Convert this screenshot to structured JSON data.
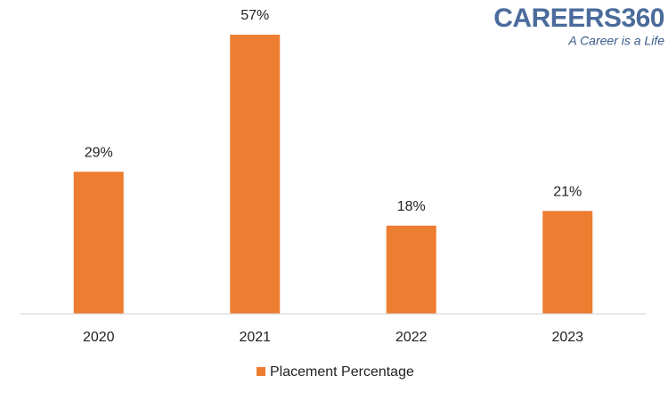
{
  "chart_data": {
    "type": "bar",
    "categories": [
      "2020",
      "2021",
      "2022",
      "2023"
    ],
    "series": [
      {
        "name": "Placement Percentage",
        "color": "#ed7d31",
        "values": [
          29,
          57,
          18,
          21
        ],
        "value_labels": [
          "29%",
          "57%",
          "18%",
          "21%"
        ]
      }
    ],
    "legend": "bottom"
  },
  "logo": {
    "text": "CAREERS360",
    "tagline": "A Career is a Life"
  }
}
